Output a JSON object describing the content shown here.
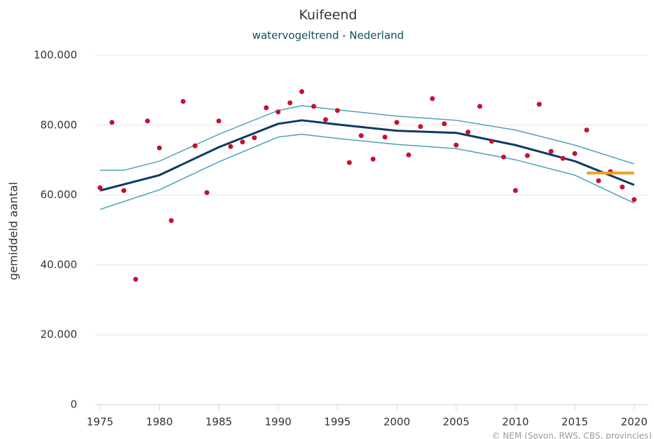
{
  "chart_data": {
    "type": "line",
    "title": "Kuifeend",
    "subtitle": "watervogeltrend - Nederland",
    "y_label": "gemiddeld aantal",
    "credit": "© NEM (Sovon, RWS, CBS, provincies)",
    "xlim": [
      1974.6,
      2021.2
    ],
    "xticks": [
      1975,
      1980,
      1985,
      1990,
      1995,
      2000,
      2005,
      2010,
      2015,
      2020
    ],
    "ylim": [
      0,
      100000
    ],
    "yticks": [
      0,
      {
        "value": 20000,
        "label": "20.000"
      },
      {
        "value": 40000,
        "label": "40.000"
      },
      {
        "value": 60000,
        "label": "60.000"
      },
      {
        "value": 80000,
        "label": "80.000"
      },
      {
        "value": 100000,
        "label": "100.000"
      }
    ],
    "grid": true,
    "series": [
      {
        "kind": "line",
        "color": "#4aa3b8",
        "width": 1.5,
        "x": [
          1975,
          1977,
          1980,
          1985,
          1990,
          1992,
          1995,
          2000,
          2005,
          2010,
          2015,
          2020
        ],
        "values": [
          67100,
          67100,
          69700,
          77400,
          84200,
          85600,
          84400,
          82600,
          81400,
          78600,
          74300,
          68900
        ]
      },
      {
        "kind": "line",
        "color": "#4aa3b8",
        "width": 1.5,
        "x": [
          1975,
          1980,
          1985,
          1990,
          1992,
          1995,
          2000,
          2005,
          2010,
          2015,
          2020
        ],
        "values": [
          55900,
          61500,
          69500,
          76600,
          77400,
          76200,
          74500,
          73300,
          70100,
          65700,
          57700
        ]
      },
      {
        "kind": "line",
        "color": "#0d3a66",
        "width": 3,
        "x": [
          1975,
          1980,
          1985,
          1990,
          1992,
          1995,
          2000,
          2005,
          2010,
          2015,
          2020
        ],
        "values": [
          61300,
          65700,
          73700,
          80400,
          81400,
          80200,
          78400,
          77800,
          74300,
          69700,
          62900
        ]
      },
      {
        "kind": "scatter",
        "color": "#c8102e",
        "x": [
          1975,
          1976,
          1977,
          1978,
          1979,
          1980,
          1981,
          1982,
          1983,
          1984,
          1985,
          1986,
          1987,
          1988,
          1989,
          1990,
          1991,
          1992,
          1993,
          1994,
          1995,
          1996,
          1997,
          1998,
          1999,
          2000,
          2001,
          2002,
          2003,
          2004,
          2005,
          2006,
          2007,
          2008,
          2009,
          2010,
          2011,
          2012,
          2013,
          2014,
          2015,
          2016,
          2017,
          2018,
          2019,
          2020
        ],
        "values": [
          62100,
          80800,
          61300,
          35900,
          81200,
          73500,
          52700,
          86800,
          74100,
          60700,
          81200,
          73900,
          75200,
          76400,
          85000,
          83800,
          86400,
          89600,
          85400,
          81600,
          84200,
          69300,
          77000,
          70300,
          76600,
          80800,
          71500,
          79600,
          87600,
          80400,
          74300,
          78000,
          85400,
          75400,
          70900,
          61300,
          71300,
          86000,
          72500,
          70500,
          71900,
          78600,
          64100,
          66700,
          62300,
          58700
        ]
      },
      {
        "kind": "line",
        "color": "#f0a020",
        "width": 4,
        "x": [
          2016,
          2020
        ],
        "values": [
          66300,
          66300
        ]
      }
    ]
  }
}
